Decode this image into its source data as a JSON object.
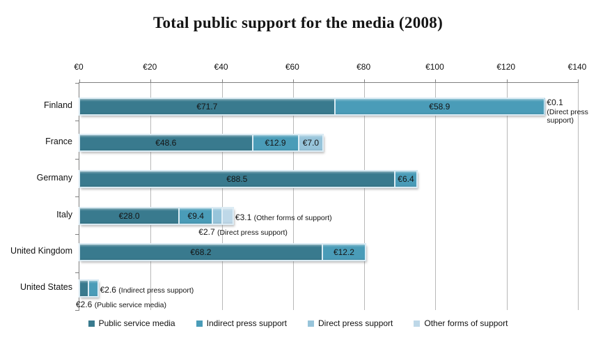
{
  "chart_data": {
    "type": "bar",
    "orientation": "horizontal-stacked",
    "title": "Total public support for the media (2008)",
    "xlim": [
      0,
      140
    ],
    "x_tick_values": [
      0,
      20,
      40,
      60,
      80,
      100,
      120,
      140
    ],
    "x_ticks": [
      "€0",
      "€20",
      "€40",
      "€60",
      "€80",
      "€100",
      "€120",
      "€140"
    ],
    "grid": true,
    "legend_position": "bottom",
    "series": [
      {
        "name": "Public service media",
        "color": "#397a8e"
      },
      {
        "name": "Indirect press support",
        "color": "#4a9cb8"
      },
      {
        "name": "Direct press support",
        "color": "#97c4da"
      },
      {
        "name": "Other forms of support",
        "color": "#bed8e8"
      }
    ],
    "rows": [
      {
        "category": "Finland",
        "segments": [
          {
            "series": 0,
            "value": 71.7,
            "label": "€71.7",
            "label_pos": "inside"
          },
          {
            "series": 1,
            "value": 58.9,
            "label": "€58.9",
            "label_pos": "inside"
          },
          {
            "series": 2,
            "value": 0.1,
            "label": "€0.1",
            "note": "(Direct press support)",
            "label_pos": "right",
            "note_wrap": true
          }
        ]
      },
      {
        "category": "France",
        "segments": [
          {
            "series": 0,
            "value": 48.6,
            "label": "€48.6",
            "label_pos": "inside"
          },
          {
            "series": 1,
            "value": 12.9,
            "label": "€12.9",
            "label_pos": "inside"
          },
          {
            "series": 2,
            "value": 7.0,
            "label": "€7.0",
            "label_pos": "inside"
          }
        ]
      },
      {
        "category": "Germany",
        "segments": [
          {
            "series": 0,
            "value": 88.5,
            "label": "€88.5",
            "label_pos": "inside"
          },
          {
            "series": 1,
            "value": 6.4,
            "label": "€6.4",
            "label_pos": "inside"
          }
        ]
      },
      {
        "category": "Italy",
        "segments": [
          {
            "series": 0,
            "value": 28.0,
            "label": "€28.0",
            "label_pos": "inside"
          },
          {
            "series": 1,
            "value": 9.4,
            "label": "€9.4",
            "label_pos": "inside"
          },
          {
            "series": 2,
            "value": 2.7,
            "label": "€2.7",
            "note": "(Direct press support)",
            "label_pos": "below"
          },
          {
            "series": 3,
            "value": 3.1,
            "label": "€3.1",
            "note": "(Other forms of support)",
            "label_pos": "right"
          }
        ]
      },
      {
        "category": "United Kingdom",
        "segments": [
          {
            "series": 0,
            "value": 68.2,
            "label": "€68.2",
            "label_pos": "inside"
          },
          {
            "series": 1,
            "value": 12.2,
            "label": "€12.2",
            "label_pos": "inside"
          }
        ]
      },
      {
        "category": "United States",
        "segments": [
          {
            "series": 0,
            "value": 2.6,
            "label": "€2.6",
            "note": "(Public service media)",
            "label_pos": "below"
          },
          {
            "series": 1,
            "value": 2.6,
            "label": "€2.6",
            "note": "(Indirect press support)",
            "label_pos": "right"
          }
        ]
      }
    ]
  }
}
